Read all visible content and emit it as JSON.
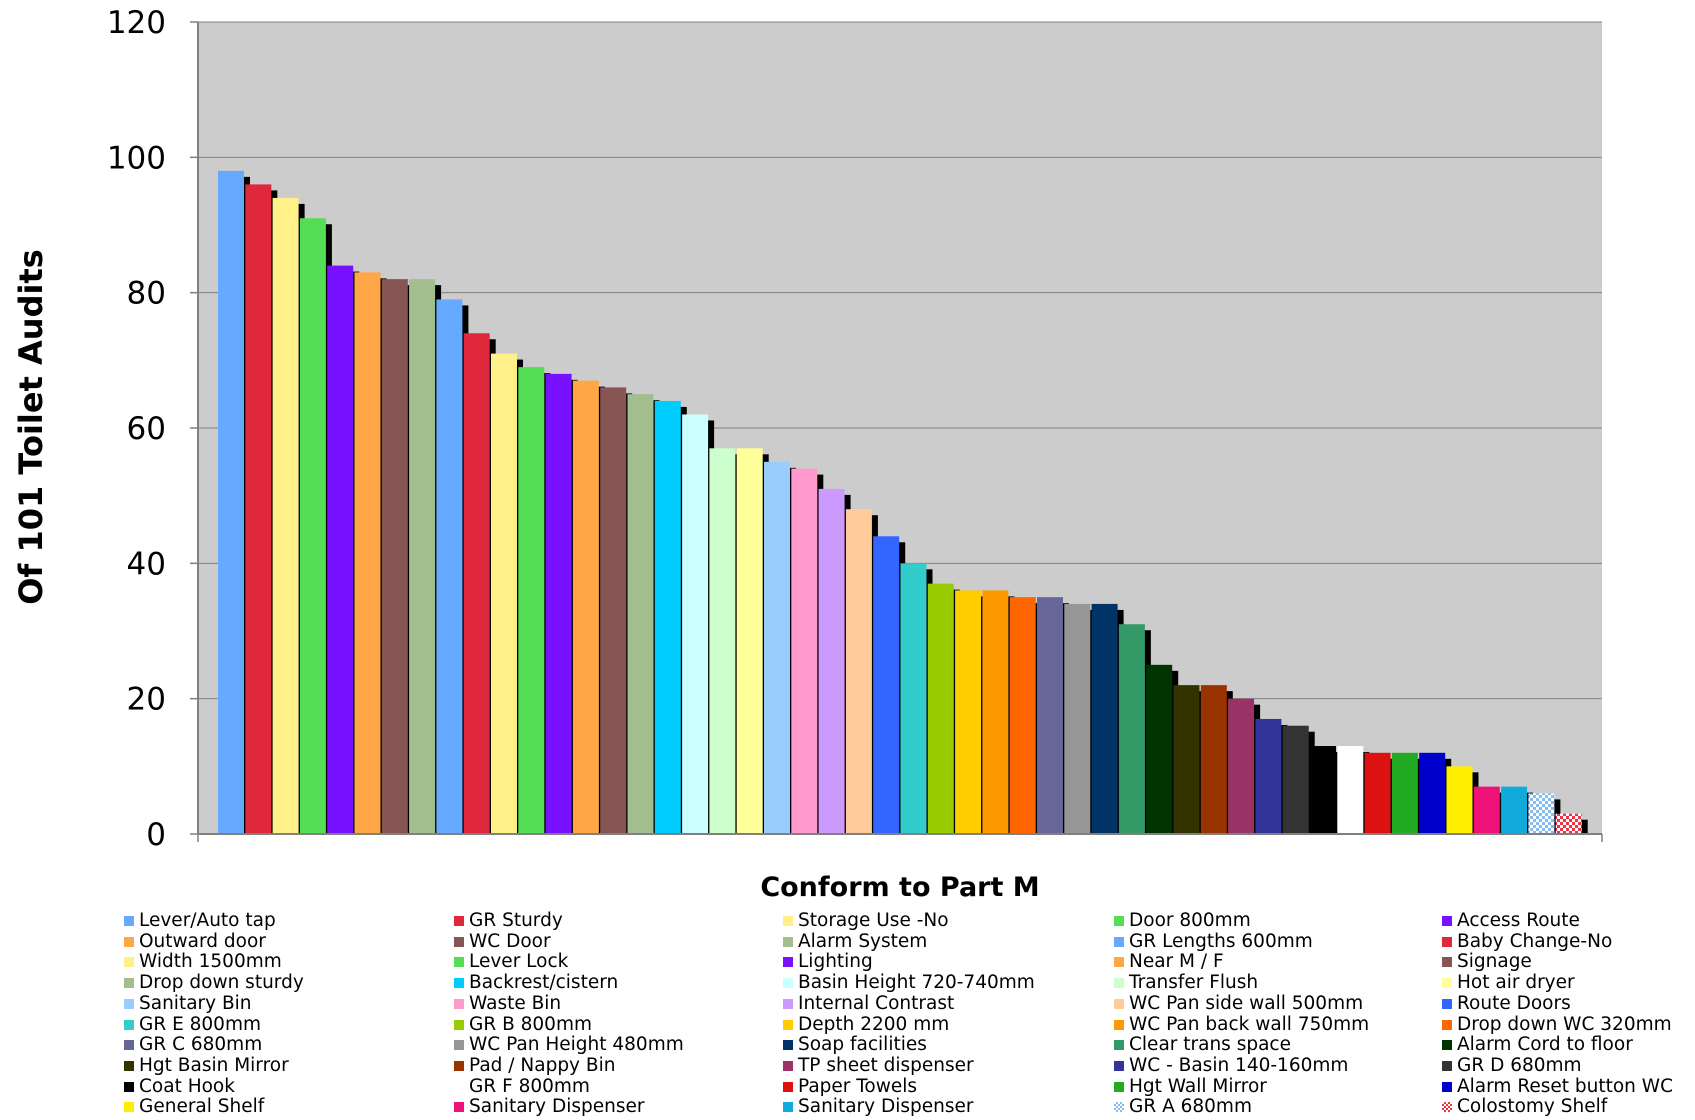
{
  "chart_data": {
    "type": "bar",
    "title": "",
    "xlabel": "Conform to Part M",
    "ylabel": "Of 101 Toilet Audits",
    "ylim": [
      0,
      120
    ],
    "yticks": [
      0,
      20,
      40,
      60,
      80,
      100,
      120
    ],
    "grid": true,
    "plot_background": "#CCCCCC",
    "shadow_color": "#000000",
    "legend_position": "bottom",
    "series": [
      {
        "name": "Lever/Auto tap",
        "value": 98,
        "color": "#66AAFF"
      },
      {
        "name": "GR Sturdy",
        "value": 96,
        "color": "#E0283C"
      },
      {
        "name": "Storage Use -No",
        "value": 94,
        "color": "#FFF08A"
      },
      {
        "name": "Door 800mm",
        "value": 91,
        "color": "#55DD55"
      },
      {
        "name": "Access Route",
        "value": 84,
        "color": "#7711FF"
      },
      {
        "name": "Outward door",
        "value": 83,
        "color": "#FFA646"
      },
      {
        "name": "WC Door",
        "value": 82,
        "color": "#885555"
      },
      {
        "name": "Alarm System",
        "value": 82,
        "color": "#A3BE8E"
      },
      {
        "name": "GR Lengths 600mm",
        "value": 79,
        "color": "#66AAFF"
      },
      {
        "name": "Baby Change-No",
        "value": 74,
        "color": "#E0283C"
      },
      {
        "name": "Width 1500mm",
        "value": 71,
        "color": "#FFF08A"
      },
      {
        "name": "Lever Lock",
        "value": 69,
        "color": "#55DD55"
      },
      {
        "name": "Lighting",
        "value": 68,
        "color": "#7711FF"
      },
      {
        "name": "Near M / F",
        "value": 67,
        "color": "#FFA646"
      },
      {
        "name": "Signage",
        "value": 66,
        "color": "#885555"
      },
      {
        "name": "Drop down sturdy",
        "value": 65,
        "color": "#A3BE8E"
      },
      {
        "name": "Backrest/cistern",
        "value": 64,
        "color": "#00CCFF"
      },
      {
        "name": "Basin Height 720-740mm",
        "value": 62,
        "color": "#CCFFFF"
      },
      {
        "name": "Transfer Flush",
        "value": 57,
        "color": "#CCFFCC"
      },
      {
        "name": "Hot air dryer",
        "value": 57,
        "color": "#FFFF99"
      },
      {
        "name": "Sanitary Bin",
        "value": 55,
        "color": "#99CCFF"
      },
      {
        "name": "Waste Bin",
        "value": 54,
        "color": "#FF99CC"
      },
      {
        "name": "Internal Contrast",
        "value": 51,
        "color": "#CC99FF"
      },
      {
        "name": "WC Pan side wall 500mm",
        "value": 48,
        "color": "#FFCC99"
      },
      {
        "name": "Route Doors",
        "value": 44,
        "color": "#3366FF"
      },
      {
        "name": "GR E 800mm",
        "value": 40,
        "color": "#33CCCC"
      },
      {
        "name": "GR B 800mm",
        "value": 37,
        "color": "#99CC00"
      },
      {
        "name": "Depth 2200 mm",
        "value": 36,
        "color": "#FFCC00"
      },
      {
        "name": "WC Pan back wall 750mm",
        "value": 36,
        "color": "#FF9900"
      },
      {
        "name": "Drop down WC 320mm",
        "value": 35,
        "color": "#FF6600"
      },
      {
        "name": "GR C 680mm",
        "value": 35,
        "color": "#666699"
      },
      {
        "name": "WC Pan Height 480mm",
        "value": 34,
        "color": "#969696"
      },
      {
        "name": "Soap facilities",
        "value": 34,
        "color": "#003366"
      },
      {
        "name": "Clear trans space",
        "value": 31,
        "color": "#339966"
      },
      {
        "name": "Alarm Cord to floor",
        "value": 25,
        "color": "#003300"
      },
      {
        "name": "Hgt Basin Mirror",
        "value": 22,
        "color": "#333300"
      },
      {
        "name": "Pad / Nappy Bin",
        "value": 22,
        "color": "#993300"
      },
      {
        "name": "TP sheet dispenser",
        "value": 20,
        "color": "#993366"
      },
      {
        "name": "WC - Basin 140-160mm",
        "value": 17,
        "color": "#333399"
      },
      {
        "name": "GR D 680mm",
        "value": 16,
        "color": "#333333"
      },
      {
        "name": "Coat Hook",
        "value": 13,
        "color": "#000000"
      },
      {
        "name": "GR F 800mm",
        "value": 13,
        "color": "#FFFFFF"
      },
      {
        "name": "Paper Towels",
        "value": 12,
        "color": "#DD1111"
      },
      {
        "name": "Hgt Wall Mirror",
        "value": 12,
        "color": "#22AA22"
      },
      {
        "name": "Alarm Reset button WC",
        "value": 12,
        "color": "#0000CC"
      },
      {
        "name": "General Shelf",
        "value": 10,
        "color": "#FFEE00"
      },
      {
        "name": "Sanitary Dispenser",
        "value": 7,
        "color": "#EE1177"
      },
      {
        "name": "Sanitary Dispenser",
        "value": 7,
        "color": "#11AADD"
      },
      {
        "name": "GR A 680mm",
        "value": 6,
        "color": "#88BBEE",
        "pattern": "checker"
      },
      {
        "name": "Colostomy Shelf",
        "value": 3,
        "color": "#EE3344",
        "pattern": "checker"
      }
    ]
  }
}
